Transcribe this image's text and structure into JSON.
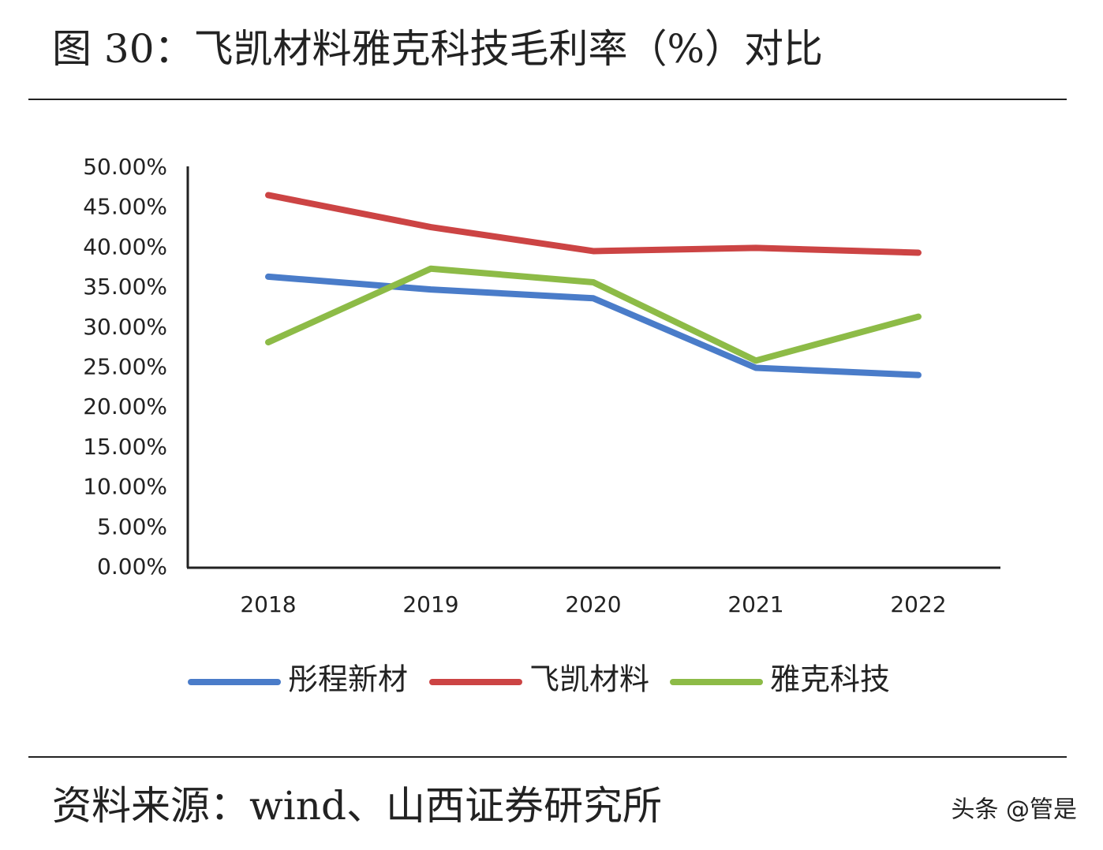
{
  "chart_data": {
    "type": "line",
    "title": "图 30：飞凯材料雅克科技毛利率（%）对比",
    "source": "资料来源：wind、山西证券研究所",
    "watermark": "头条 @管是",
    "categories": [
      "2018",
      "2019",
      "2020",
      "2021",
      "2022"
    ],
    "series": [
      {
        "name": "彤程新材",
        "color": "#4a7cc9",
        "values": [
          36.4,
          34.8,
          33.7,
          25.0,
          24.1
        ]
      },
      {
        "name": "飞凯材料",
        "color": "#cc4444",
        "values": [
          46.6,
          42.6,
          39.6,
          40.0,
          39.4
        ]
      },
      {
        "name": "雅克科技",
        "color": "#8dbb47",
        "values": [
          28.2,
          37.4,
          35.7,
          25.9,
          31.4
        ]
      }
    ],
    "ylim": [
      0,
      50
    ],
    "yticks": [
      {
        "value": 0,
        "label": "0.00%"
      },
      {
        "value": 5,
        "label": "5.00%"
      },
      {
        "value": 10,
        "label": "10.00%"
      },
      {
        "value": 15,
        "label": "15.00%"
      },
      {
        "value": 20,
        "label": "20.00%"
      },
      {
        "value": 25,
        "label": "25.00%"
      },
      {
        "value": 30,
        "label": "30.00%"
      },
      {
        "value": 35,
        "label": "35.00%"
      },
      {
        "value": 40,
        "label": "40.00%"
      },
      {
        "value": 45,
        "label": "45.00%"
      },
      {
        "value": 50,
        "label": "50.00%"
      }
    ],
    "grid": false,
    "legend": "bottom"
  }
}
